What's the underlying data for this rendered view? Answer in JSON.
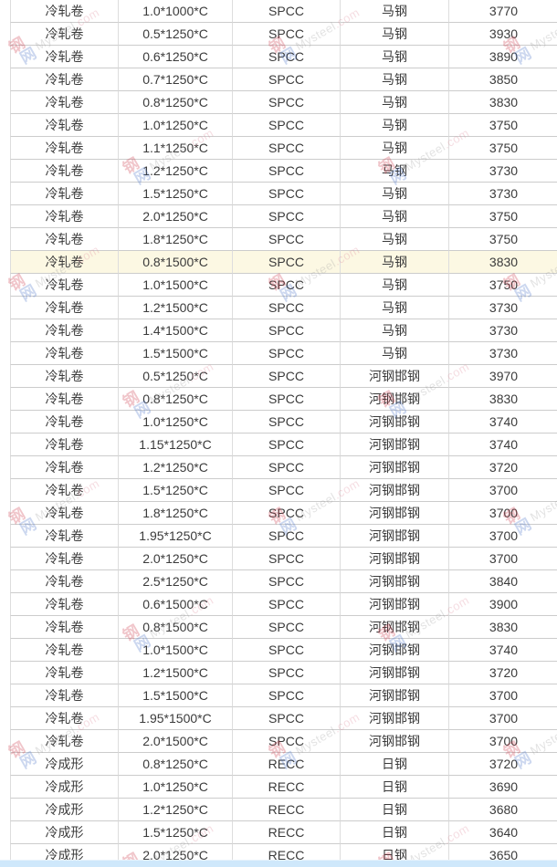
{
  "page": {
    "background": "#ffffff"
  },
  "table": {
    "highlighted_row_index": 11,
    "highlight_color": "#fcf8e3",
    "rows": [
      {
        "product": "冷轧卷",
        "spec": "1.0*1000*C",
        "material": "SPCC",
        "mill": "马钢",
        "price": "3770"
      },
      {
        "product": "冷轧卷",
        "spec": "0.5*1250*C",
        "material": "SPCC",
        "mill": "马钢",
        "price": "3930"
      },
      {
        "product": "冷轧卷",
        "spec": "0.6*1250*C",
        "material": "SPCC",
        "mill": "马钢",
        "price": "3890"
      },
      {
        "product": "冷轧卷",
        "spec": "0.7*1250*C",
        "material": "SPCC",
        "mill": "马钢",
        "price": "3850"
      },
      {
        "product": "冷轧卷",
        "spec": "0.8*1250*C",
        "material": "SPCC",
        "mill": "马钢",
        "price": "3830"
      },
      {
        "product": "冷轧卷",
        "spec": "1.0*1250*C",
        "material": "SPCC",
        "mill": "马钢",
        "price": "3750"
      },
      {
        "product": "冷轧卷",
        "spec": "1.1*1250*C",
        "material": "SPCC",
        "mill": "马钢",
        "price": "3750"
      },
      {
        "product": "冷轧卷",
        "spec": "1.2*1250*C",
        "material": "SPCC",
        "mill": "马钢",
        "price": "3730"
      },
      {
        "product": "冷轧卷",
        "spec": "1.5*1250*C",
        "material": "SPCC",
        "mill": "马钢",
        "price": "3730"
      },
      {
        "product": "冷轧卷",
        "spec": "2.0*1250*C",
        "material": "SPCC",
        "mill": "马钢",
        "price": "3750"
      },
      {
        "product": "冷轧卷",
        "spec": "1.8*1250*C",
        "material": "SPCC",
        "mill": "马钢",
        "price": "3750"
      },
      {
        "product": "冷轧卷",
        "spec": "0.8*1500*C",
        "material": "SPCC",
        "mill": "马钢",
        "price": "3830"
      },
      {
        "product": "冷轧卷",
        "spec": "1.0*1500*C",
        "material": "SPCC",
        "mill": "马钢",
        "price": "3750"
      },
      {
        "product": "冷轧卷",
        "spec": "1.2*1500*C",
        "material": "SPCC",
        "mill": "马钢",
        "price": "3730"
      },
      {
        "product": "冷轧卷",
        "spec": "1.4*1500*C",
        "material": "SPCC",
        "mill": "马钢",
        "price": "3730"
      },
      {
        "product": "冷轧卷",
        "spec": "1.5*1500*C",
        "material": "SPCC",
        "mill": "马钢",
        "price": "3730"
      },
      {
        "product": "冷轧卷",
        "spec": "0.5*1250*C",
        "material": "SPCC",
        "mill": "河钢邯钢",
        "price": "3970"
      },
      {
        "product": "冷轧卷",
        "spec": "0.8*1250*C",
        "material": "SPCC",
        "mill": "河钢邯钢",
        "price": "3830"
      },
      {
        "product": "冷轧卷",
        "spec": "1.0*1250*C",
        "material": "SPCC",
        "mill": "河钢邯钢",
        "price": "3740"
      },
      {
        "product": "冷轧卷",
        "spec": "1.15*1250*C",
        "material": "SPCC",
        "mill": "河钢邯钢",
        "price": "3740"
      },
      {
        "product": "冷轧卷",
        "spec": "1.2*1250*C",
        "material": "SPCC",
        "mill": "河钢邯钢",
        "price": "3720"
      },
      {
        "product": "冷轧卷",
        "spec": "1.5*1250*C",
        "material": "SPCC",
        "mill": "河钢邯钢",
        "price": "3700"
      },
      {
        "product": "冷轧卷",
        "spec": "1.8*1250*C",
        "material": "SPCC",
        "mill": "河钢邯钢",
        "price": "3700"
      },
      {
        "product": "冷轧卷",
        "spec": "1.95*1250*C",
        "material": "SPCC",
        "mill": "河钢邯钢",
        "price": "3700"
      },
      {
        "product": "冷轧卷",
        "spec": "2.0*1250*C",
        "material": "SPCC",
        "mill": "河钢邯钢",
        "price": "3700"
      },
      {
        "product": "冷轧卷",
        "spec": "2.5*1250*C",
        "material": "SPCC",
        "mill": "河钢邯钢",
        "price": "3840"
      },
      {
        "product": "冷轧卷",
        "spec": "0.6*1500*C",
        "material": "SPCC",
        "mill": "河钢邯钢",
        "price": "3900"
      },
      {
        "product": "冷轧卷",
        "spec": "0.8*1500*C",
        "material": "SPCC",
        "mill": "河钢邯钢",
        "price": "3830"
      },
      {
        "product": "冷轧卷",
        "spec": "1.0*1500*C",
        "material": "SPCC",
        "mill": "河钢邯钢",
        "price": "3740"
      },
      {
        "product": "冷轧卷",
        "spec": "1.2*1500*C",
        "material": "SPCC",
        "mill": "河钢邯钢",
        "price": "3720"
      },
      {
        "product": "冷轧卷",
        "spec": "1.5*1500*C",
        "material": "SPCC",
        "mill": "河钢邯钢",
        "price": "3700"
      },
      {
        "product": "冷轧卷",
        "spec": "1.95*1500*C",
        "material": "SPCC",
        "mill": "河钢邯钢",
        "price": "3700"
      },
      {
        "product": "冷轧卷",
        "spec": "2.0*1500*C",
        "material": "SPCC",
        "mill": "河钢邯钢",
        "price": "3700"
      },
      {
        "product": "冷成形",
        "spec": "0.8*1250*C",
        "material": "RECC",
        "mill": "日钢",
        "price": "3720"
      },
      {
        "product": "冷成形",
        "spec": "1.0*1250*C",
        "material": "RECC",
        "mill": "日钢",
        "price": "3690"
      },
      {
        "product": "冷成形",
        "spec": "1.2*1250*C",
        "material": "RECC",
        "mill": "日钢",
        "price": "3680"
      },
      {
        "product": "冷成形",
        "spec": "1.5*1250*C",
        "material": "RECC",
        "mill": "日钢",
        "price": "3640"
      },
      {
        "product": "冷成形",
        "spec": "2.0*1250*C",
        "material": "RECC",
        "mill": "日钢",
        "price": "3650"
      }
    ]
  },
  "watermark": {
    "brand": "Mysteel",
    "domain": ".com",
    "logo_char_red": "钢",
    "logo_char_blue": "网",
    "color_red": "#cc3344",
    "color_blue": "#4a74c9",
    "color_brand_text": "#9a9a9a",
    "color_domain_text": "#dd8899"
  },
  "bottom_band": {
    "color": "#cfe8fb"
  }
}
